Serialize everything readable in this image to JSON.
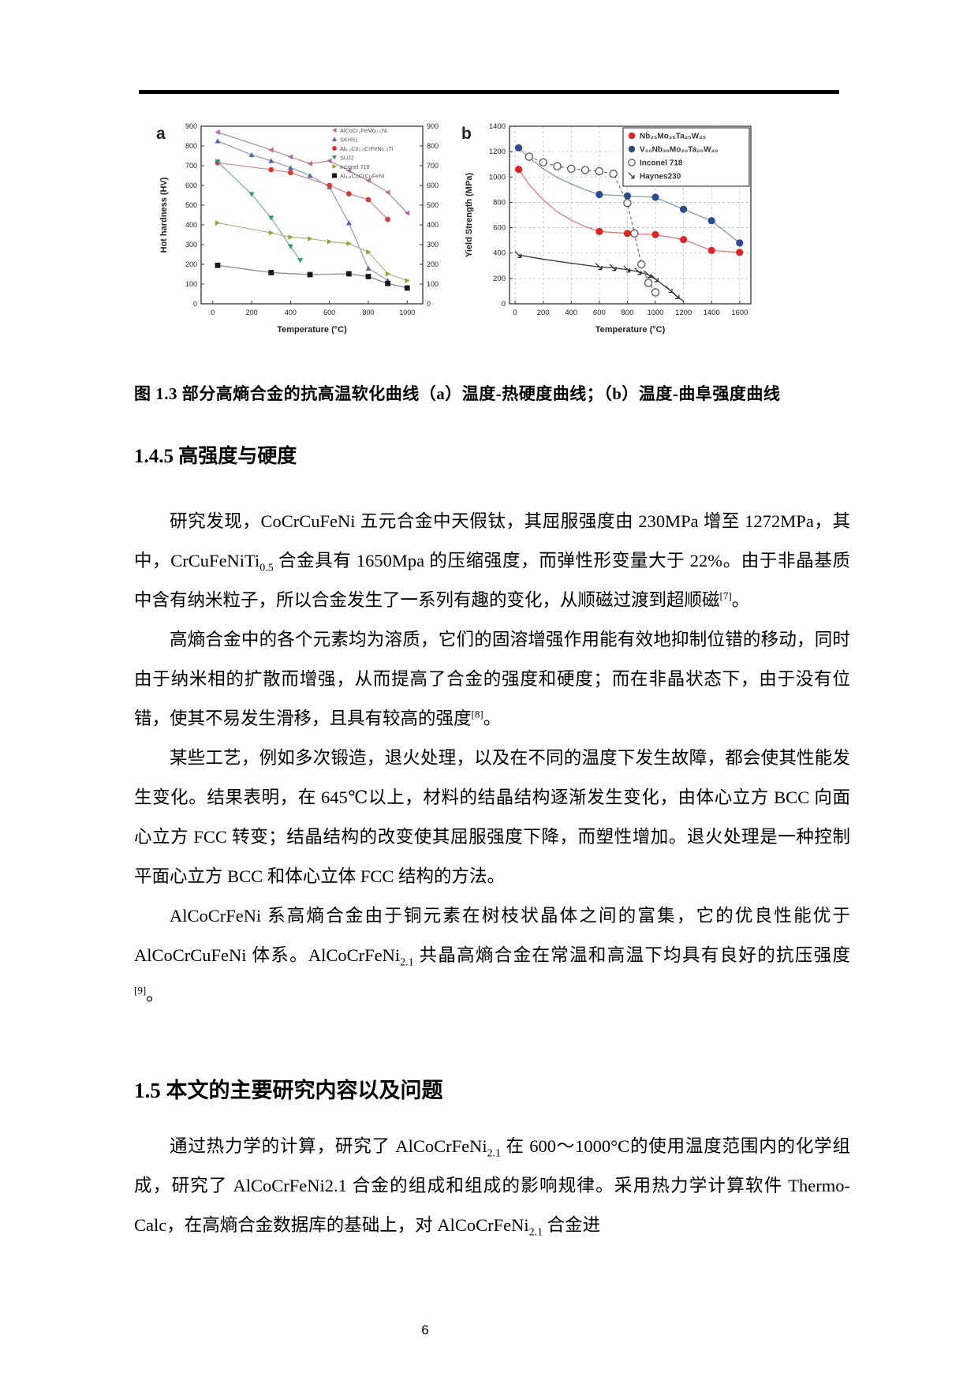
{
  "page_number": "6",
  "figure": {
    "caption": "图 1.3 部分高熵合金的抗高温软化曲线（a）温度-热硬度曲线；（b）温度-曲阜强度曲线"
  },
  "headings": {
    "s145": "1.4.5  高强度与硬度",
    "s15": "1.5  本文的主要研究内容以及问题"
  },
  "paragraphs": {
    "p1": [
      {
        "t": "研究发现，CoCrCuFeNi 五元合金中天假钛，其屈服强度由 230MPa 增至 1272MPa，其中，CrCuFeNiTi"
      },
      {
        "sub": "0.5"
      },
      {
        "t": " 合金具有 1650Mpa 的压缩强度，而弹性形变量大于 22%。由于非晶基质中含有纳米粒子，所以合金发生了一系列有趣的变化，从顺磁过渡到超顺磁"
      },
      {
        "sup": "[7]"
      },
      {
        "t": "。"
      }
    ],
    "p2": [
      {
        "t": "高熵合金中的各个元素均为溶质，它们的固溶增强作用能有效地抑制位错的移动，同时由于纳米相的扩散而增强，从而提高了合金的强度和硬度；而在非晶状态下，由于没有位错，使其不易发生滑移，且具有较高的强度"
      },
      {
        "sup": "[8]"
      },
      {
        "t": "。"
      }
    ],
    "p3": [
      {
        "t": "某些工艺，例如多次锻造，退火处理，以及在不同的温度下发生故障，都会使其性能发生变化。结果表明，在 645℃以上，材料的结晶结构逐渐发生变化，由体心立方 BCC 向面心立方 FCC 转变；结晶结构的改变使其屈服强度下降，而塑性增加。退火处理是一种控制平面心立方 BCC 和体心立体 FCC 结构的方法。"
      }
    ],
    "p4": [
      {
        "t": "AlCoCrFeNi 系高熵合金由于铜元素在树枝状晶体之间的富集，它的优良性能优于 AlCoCrCuFeNi 体系。AlCoCrFeNi"
      },
      {
        "sub": "2.1"
      },
      {
        "t": " 共晶高熵合金在常温和高温下均具有良好的抗压强度"
      },
      {
        "sup": "[9]"
      },
      {
        "t": "。"
      }
    ],
    "p5": [
      {
        "t": "通过热力学的计算，研究了 AlCoCrFeNi"
      },
      {
        "sub": "2.1"
      },
      {
        "t": " 在 600～1000°C的使用温度范围内的化学组成，研究了 AlCoCrFeNi2.1 合金的组成和组成的影响规律。采用热力学计算软件 Thermo-Calc，在高熵合金数据库的基础上，对 AlCoCrFeNi"
      },
      {
        "sub": "2.1"
      },
      {
        "t": " 合金进"
      }
    ]
  },
  "chart_data": [
    {
      "type": "line",
      "panel_label": "a",
      "xlabel": "Temperature (°C)",
      "ylabel": "Hot hardness (HV)",
      "xlim": [
        -60,
        1080
      ],
      "ylim": [
        0,
        900
      ],
      "xticks": [
        0,
        200,
        400,
        600,
        800,
        1000
      ],
      "yticks": [
        0,
        100,
        200,
        300,
        400,
        500,
        600,
        700,
        800,
        900
      ],
      "mirror": true,
      "grid": "none",
      "legend_position": "top-right",
      "series": [
        {
          "name": "AlCoCr₂FeMo₀.₅Ni",
          "marker": "triangle-left",
          "color": "#b565a7",
          "line_color": "#b09090",
          "points": [
            [
              25,
              870
            ],
            [
              300,
              780
            ],
            [
              400,
              745
            ],
            [
              500,
              710
            ],
            [
              600,
              725
            ],
            [
              700,
              675
            ],
            [
              800,
              625
            ],
            [
              900,
              565
            ],
            [
              1000,
              460
            ]
          ]
        },
        {
          "name": "SKH51",
          "marker": "triangle-up",
          "color": "#4a69a8",
          "line_color": "#9aa0b0",
          "points": [
            [
              25,
              825
            ],
            [
              200,
              755
            ],
            [
              300,
              725
            ],
            [
              400,
              690
            ],
            [
              500,
              650
            ],
            [
              600,
              592
            ],
            [
              700,
              410
            ],
            [
              800,
              180
            ],
            [
              900,
              118
            ]
          ]
        },
        {
          "name": "Al₀.₂Co₁.₅CrFeNi₁.₅Ti",
          "marker": "circle",
          "color": "#d93a34",
          "line_color": "#c89090",
          "points": [
            [
              25,
              715
            ],
            [
              300,
              680
            ],
            [
              400,
              665
            ],
            [
              600,
              600
            ],
            [
              700,
              558
            ],
            [
              800,
              528
            ],
            [
              900,
              428
            ]
          ]
        },
        {
          "name": "SUJ2",
          "marker": "triangle-down",
          "color": "#2a9086",
          "line_color": "#7fb3ad",
          "points": [
            [
              25,
              720
            ],
            [
              200,
              555
            ],
            [
              300,
              435
            ],
            [
              400,
              290
            ],
            [
              450,
              220
            ]
          ]
        },
        {
          "name": "Inconel 718",
          "marker": "triangle-right",
          "color": "#99a03b",
          "line_color": "#b3b786",
          "points": [
            [
              25,
              410
            ],
            [
              300,
              360
            ],
            [
              400,
              338
            ],
            [
              500,
              330
            ],
            [
              600,
              315
            ],
            [
              700,
              305
            ],
            [
              800,
              263
            ],
            [
              900,
              152
            ],
            [
              1000,
              118
            ]
          ]
        },
        {
          "name": "Al₀.₅CoCrCuFeNi",
          "marker": "square",
          "color": "#1a1a1a",
          "line_color": "#8a8a8a",
          "points": [
            [
              25,
              195
            ],
            [
              300,
              158
            ],
            [
              500,
              148
            ],
            [
              700,
              152
            ],
            [
              800,
              138
            ],
            [
              900,
              103
            ],
            [
              1000,
              80
            ]
          ]
        }
      ]
    },
    {
      "type": "line",
      "panel_label": "b",
      "xlabel": "Temperature (°C)",
      "ylabel": "Yield Strength (MPa)",
      "xlim": [
        -40,
        1680
      ],
      "ylim": [
        0,
        1400
      ],
      "xticks": [
        0,
        200,
        400,
        600,
        800,
        1000,
        1200,
        1400,
        1600
      ],
      "yticks": [
        0,
        200,
        400,
        600,
        800,
        1000,
        1200,
        1400
      ],
      "mirror": false,
      "grid": "dashed",
      "legend_position": "top-right",
      "series": [
        {
          "name": "Nb₂₅Mo₂₅Ta₂₅W₂₅",
          "marker": "circle",
          "color": "#e02424",
          "line_color": "#d87878",
          "points": [
            [
              25,
              1060
            ],
            [
              100,
              940
            ],
            [
              200,
              820
            ],
            [
              300,
              725
            ],
            [
              400,
              660
            ],
            [
              500,
              608
            ],
            [
              600,
              570
            ],
            [
              800,
              555
            ],
            [
              1000,
              545
            ],
            [
              1200,
              506
            ],
            [
              1400,
              421
            ],
            [
              1600,
              405
            ]
          ],
          "markers_at": [
            25,
            600,
            800,
            1000,
            1200,
            1400,
            1600
          ]
        },
        {
          "name": "V₂₀Nb₂₀Mo₂₀Ta₂₀W₂₀",
          "marker": "circle",
          "color": "#2c4a8c",
          "line_color": "#7d9cb4",
          "points": [
            [
              25,
              1230
            ],
            [
              100,
              1150
            ],
            [
              200,
              1065
            ],
            [
              300,
              995
            ],
            [
              400,
              945
            ],
            [
              500,
              898
            ],
            [
              600,
              862
            ],
            [
              800,
              850
            ],
            [
              1000,
              840
            ],
            [
              1200,
              745
            ],
            [
              1400,
              655
            ],
            [
              1600,
              480
            ]
          ],
          "markers_at": [
            25,
            600,
            800,
            1000,
            1200,
            1400,
            1600
          ]
        },
        {
          "name": "Inconel 718",
          "marker": "open-circle",
          "color": "#555555",
          "line_color": "#777777",
          "dashed": true,
          "points": [
            [
              100,
              1160
            ],
            [
              200,
              1115
            ],
            [
              300,
              1085
            ],
            [
              400,
              1065
            ],
            [
              500,
              1055
            ],
            [
              600,
              1045
            ],
            [
              700,
              1025
            ],
            [
              800,
              795
            ],
            [
              850,
              555
            ],
            [
              900,
              310
            ],
            [
              950,
              165
            ],
            [
              1000,
              90
            ]
          ]
        },
        {
          "name": "Haynes230",
          "marker": "arrow",
          "color": "#222222",
          "line_color": "#333333",
          "points": [
            [
              25,
              385
            ],
            [
              100,
              370
            ],
            [
              200,
              352
            ],
            [
              300,
              335
            ],
            [
              400,
              320
            ],
            [
              500,
              305
            ],
            [
              600,
              290
            ],
            [
              700,
              283
            ],
            [
              800,
              270
            ],
            [
              880,
              252
            ],
            [
              950,
              228
            ],
            [
              1000,
              195
            ],
            [
              1100,
              110
            ],
            [
              1150,
              62
            ],
            [
              1200,
              20
            ]
          ],
          "markers_at": [
            25,
            600,
            700,
            800,
            880,
            950,
            1000,
            1100,
            1150
          ]
        }
      ]
    }
  ]
}
